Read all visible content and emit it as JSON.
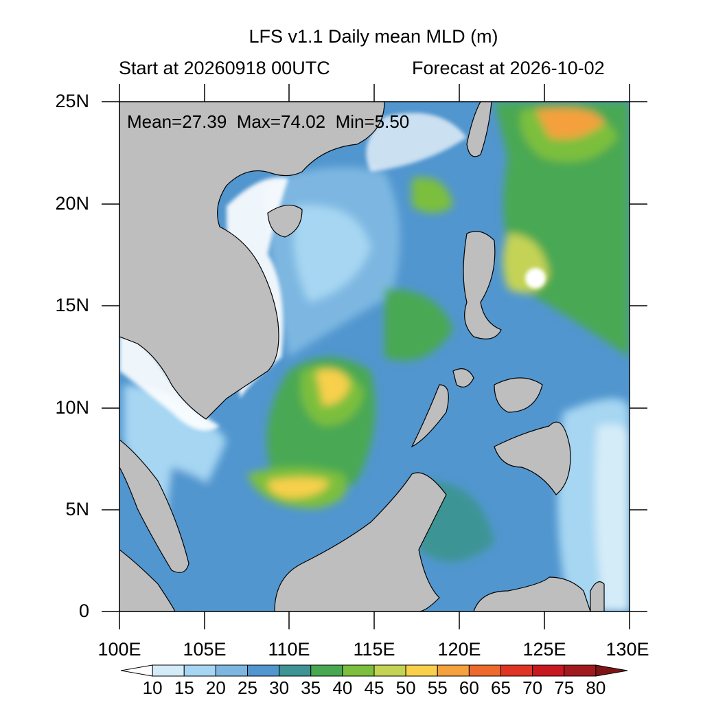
{
  "title": "LFS v1.1 Daily mean MLD (m)",
  "subtitle_left": "Start at 20260918 00UTC",
  "subtitle_right": "Forecast at 2026-10-02",
  "stats": {
    "mean_label": "Mean=27.39",
    "max_label": "Max=74.02",
    "min_label": "Min=5.50",
    "mean": 27.39,
    "max": 74.02,
    "min": 5.5
  },
  "axes": {
    "y_labels": [
      "25N",
      "20N",
      "15N",
      "10N",
      "5N",
      "0"
    ],
    "x_labels": [
      "100E",
      "105E",
      "110E",
      "115E",
      "120E",
      "125E",
      "130E"
    ],
    "lon_range": [
      100,
      130
    ],
    "lat_range": [
      0,
      25
    ]
  },
  "colorbar": {
    "labels": [
      "10",
      "15",
      "20",
      "25",
      "30",
      "35",
      "40",
      "45",
      "50",
      "55",
      "60",
      "65",
      "70",
      "75",
      "80"
    ],
    "colors": [
      "#ffffff",
      "#d4ecf8",
      "#a6d6f2",
      "#7db7e1",
      "#5196cf",
      "#3e9494",
      "#48a852",
      "#7cbf3e",
      "#c4d354",
      "#f8d04c",
      "#f4a13e",
      "#ee6a2c",
      "#e03424",
      "#c81820",
      "#a21a1e",
      "#7f1416"
    ]
  },
  "colors": {
    "land": "#bebebe",
    "land_outline": "#000000"
  }
}
